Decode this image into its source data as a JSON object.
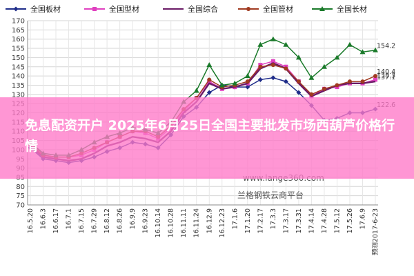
{
  "chart_data": {
    "type": "line",
    "title": "",
    "xlabel": "",
    "ylabel": "",
    "ylim": [
      70,
      170
    ],
    "yticks": [
      70,
      75,
      80,
      85,
      90,
      95,
      100,
      105,
      110,
      115,
      120,
      125,
      130,
      135,
      140,
      145,
      150,
      155,
      160,
      165,
      170
    ],
    "grid": true,
    "legend_position": "top",
    "x_tick_labels": [
      "16.5.20",
      "16.6.3",
      "16.6.17",
      "16.7.1",
      "16.7.15",
      "16.7.29",
      "16.8.12",
      "16.8.26",
      "16.9.9",
      "16.9.23",
      "16.10.14",
      "16.10.28",
      "16.11.11",
      "16.11.24",
      "16.12.9",
      "16.12.23",
      "17.1.6",
      "17.1.20",
      "17.2.17",
      "17.3.3",
      "17.3.17",
      "17.3.31",
      "17.4.14",
      "17.4.28",
      "17.5.12",
      "17.5.26",
      "17.6.9",
      "预测2017-6-23"
    ],
    "series": [
      {
        "name": "全国板材",
        "color": "#1f2d8a",
        "marker": "diamond",
        "values": [
          101,
          95,
          94,
          93,
          94,
          96,
          99,
          101,
          104,
          103,
          101,
          108,
          118,
          123,
          131,
          135,
          134,
          134,
          138,
          139,
          137,
          131,
          124,
          116,
          117,
          120,
          120,
          122
        ],
        "end_label": "122.6"
      },
      {
        "name": "全国型材",
        "color": "#e040c0",
        "marker": "square",
        "values": [
          104,
          97,
          96,
          96,
          97,
          100,
          104,
          107,
          110,
          109,
          106,
          112,
          121,
          128,
          137,
          133,
          134,
          136,
          146,
          148,
          145,
          137,
          129,
          133,
          134,
          136,
          136,
          138
        ],
        "end_label": "138.3"
      },
      {
        "name": "全国综合",
        "color": "#6a1a66",
        "marker": "none",
        "values": [
          102,
          96,
          95,
          94,
          95,
          98,
          102,
          104,
          107,
          106,
          104,
          110,
          120,
          126,
          136,
          133,
          134,
          136,
          144,
          147,
          144,
          136,
          129,
          132,
          135,
          136,
          136,
          137
        ],
        "end_label": "137.1"
      },
      {
        "name": "全国管材",
        "color": "#a03a20",
        "marker": "circle",
        "values": [
          103,
          97,
          96,
          96,
          98,
          101,
          104,
          107,
          110,
          110,
          107,
          113,
          122,
          128,
          138,
          134,
          135,
          137,
          145,
          146,
          144,
          137,
          130,
          133,
          135,
          137,
          137,
          140
        ],
        "end_label": "140.4"
      },
      {
        "name": "全国长材",
        "color": "#1a7a2a",
        "marker": "triangle",
        "values": [
          104,
          98,
          97,
          97,
          100,
          104,
          107,
          109,
          112,
          111,
          109,
          115,
          126,
          132,
          146,
          135,
          136,
          140,
          157,
          160,
          157,
          150,
          139,
          145,
          150,
          157,
          153,
          154
        ],
        "end_label": "154.2"
      }
    ]
  },
  "watermarks": {
    "site": "www.lange360.com",
    "platform": "兰格钢铁云商平台"
  },
  "banner": {
    "text": "免息配资开户 2025年6月25日全国主要批发市场西葫芦价格行情"
  }
}
